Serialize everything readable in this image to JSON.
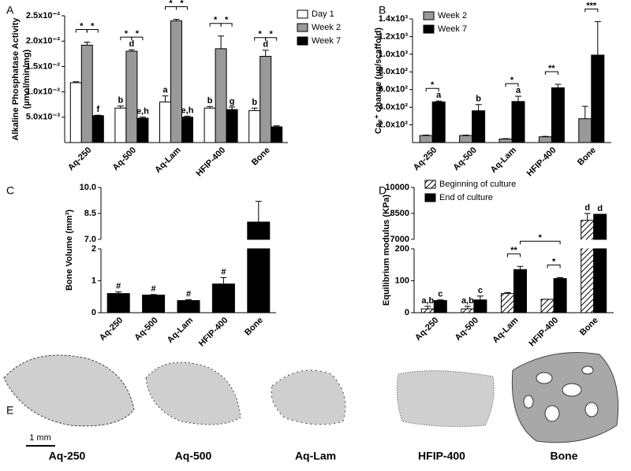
{
  "chart_data": [
    {
      "panel": "A",
      "type": "bar",
      "ylabel": [
        "Alkaline Phosphatase Activity",
        "(µmol/min/mg)"
      ],
      "categories": [
        "Aq-250",
        "Aq-500",
        "Aq-Lam",
        "HFIP-400",
        "Bone"
      ],
      "series": [
        {
          "name": "Day 1",
          "color": "#ffffff",
          "values": [
            0.0118,
            0.0068,
            0.008,
            0.0068,
            0.0063
          ],
          "errors": [
            0.0002,
            0.0004,
            0.0012,
            0.0003,
            0.0005
          ],
          "letters": [
            null,
            "b",
            "a",
            "b",
            "b"
          ]
        },
        {
          "name": "Week 2",
          "color": "#999999",
          "values": [
            0.0192,
            0.018,
            0.024,
            0.0185,
            0.017
          ],
          "errors": [
            0.0006,
            0.0003,
            0.0003,
            0.0025,
            0.0012
          ],
          "letters": [
            null,
            "d",
            null,
            null,
            "d"
          ]
        },
        {
          "name": "Week 7",
          "color": "#000000",
          "values": [
            0.0053,
            0.0048,
            0.005,
            0.0065,
            0.0031
          ],
          "errors": [
            0.0001,
            0.0002,
            0.0002,
            0.0005,
            0.0002
          ],
          "letters": [
            "f",
            "e,h",
            "e,h",
            "g",
            null
          ]
        }
      ],
      "ylim": [
        0,
        0.025
      ],
      "yticks": [
        {
          "value": 0.005,
          "label": "5.0x10⁻³"
        },
        {
          "value": 0.01,
          "label": "1.0x10⁻²"
        },
        {
          "value": 0.015,
          "label": "1.5x10⁻²"
        },
        {
          "value": 0.02,
          "label": "2.0x10⁻²"
        },
        {
          "value": 0.025,
          "label": "2.5x10⁻²"
        }
      ],
      "legend": "right",
      "brackets": [
        {
          "from": [
            0,
            0
          ],
          "to": [
            0,
            1
          ],
          "label": "*"
        },
        {
          "from": [
            0,
            1
          ],
          "to": [
            0,
            2
          ],
          "label": "*"
        },
        {
          "from": [
            1,
            0
          ],
          "to": [
            1,
            1
          ],
          "label": "*"
        },
        {
          "from": [
            1,
            1
          ],
          "to": [
            1,
            2
          ],
          "label": "*"
        },
        {
          "from": [
            2,
            0
          ],
          "to": [
            2,
            1
          ],
          "label": "*"
        },
        {
          "from": [
            2,
            1
          ],
          "to": [
            2,
            2
          ],
          "label": "*"
        },
        {
          "from": [
            3,
            0
          ],
          "to": [
            3,
            1
          ],
          "label": "*"
        },
        {
          "from": [
            3,
            1
          ],
          "to": [
            3,
            2
          ],
          "label": "*"
        },
        {
          "from": [
            4,
            0
          ],
          "to": [
            4,
            1
          ],
          "label": "*"
        },
        {
          "from": [
            4,
            1
          ],
          "to": [
            4,
            2
          ],
          "label": "*"
        }
      ]
    },
    {
      "panel": "B",
      "type": "bar",
      "ylabel": [
        "Ca₂⁺ change (µg/scaffold)"
      ],
      "categories": [
        "Aq-250",
        "Aq-500",
        "Aq-Lam",
        "HFIP-400",
        "Bone"
      ],
      "series": [
        {
          "name": "Week 2",
          "color": "#999999",
          "values": [
            80,
            80,
            40,
            65,
            270
          ],
          "errors": [
            5,
            5,
            5,
            5,
            140
          ],
          "letters": [
            null,
            null,
            null,
            null,
            null
          ]
        },
        {
          "name": "Week 7",
          "color": "#000000",
          "values": [
            460,
            360,
            465,
            620,
            990
          ],
          "errors": [
            10,
            70,
            60,
            40,
            380
          ],
          "letters": [
            "a",
            "b",
            "a",
            null,
            null
          ]
        }
      ],
      "ylim": [
        0,
        1400
      ],
      "yticks": [
        {
          "value": 200,
          "label": "2.0x10²"
        },
        {
          "value": 400,
          "label": "4.0x10²"
        },
        {
          "value": 600,
          "label": "6.0x10²"
        },
        {
          "value": 800,
          "label": "8.0x10²"
        },
        {
          "value": 1000,
          "label": "1.0x10³"
        },
        {
          "value": 1200,
          "label": "1.2x10³"
        },
        {
          "value": 1400,
          "label": "1.4x10³"
        }
      ],
      "legend": "upper left",
      "brackets": [
        {
          "from": [
            0,
            0
          ],
          "to": [
            0,
            1
          ],
          "label": "*"
        },
        {
          "from": [
            2,
            0
          ],
          "to": [
            2,
            1
          ],
          "label": "*"
        },
        {
          "from": [
            3,
            0
          ],
          "to": [
            3,
            1
          ],
          "label": "**"
        },
        {
          "from": [
            4,
            0
          ],
          "to": [
            4,
            1
          ],
          "label": "***"
        }
      ]
    },
    {
      "panel": "C",
      "type": "bar",
      "ylabel": [
        "Bone Volume (mm³)"
      ],
      "categories": [
        "Aq-250",
        "Aq-500",
        "Aq-Lam",
        "HFIP-400",
        "Bone"
      ],
      "series": [
        {
          "color": "#000000",
          "values": [
            0.6,
            0.55,
            0.38,
            0.9,
            8.0
          ],
          "errors": [
            0.05,
            0.02,
            0.03,
            0.2,
            1.2
          ],
          "letters": [
            "#",
            "#",
            "#",
            "#",
            null
          ]
        }
      ],
      "ylim": [
        0,
        10
      ],
      "ybreak": [
        2,
        7
      ],
      "yticks": [
        0,
        1,
        2,
        {
          "value": 7,
          "label": "7.0"
        },
        8.5,
        {
          "value": 10,
          "label": "10.0"
        }
      ],
      "brackets": []
    },
    {
      "panel": "D",
      "type": "bar",
      "ylabel": [
        "Equilibrium modulus (KPa)"
      ],
      "categories": [
        "Aq-250",
        "Aq-500",
        "Aq-Lam",
        "HFIP-400",
        "Bone"
      ],
      "series": [
        {
          "name": "Beginning of culture",
          "color": "#000000",
          "hatch": true,
          "values": [
            12,
            12,
            60,
            42,
            8100
          ],
          "errors": [
            8,
            8,
            3,
            0,
            400
          ],
          "letters": [
            "a,b",
            "a,b",
            null,
            null,
            "d"
          ]
        },
        {
          "name": "End of culture",
          "color": "#000000",
          "values": [
            38,
            40,
            135,
            107,
            8450
          ],
          "errors": [
            2,
            12,
            10,
            3,
            0
          ],
          "letters": [
            "c",
            "c",
            null,
            null,
            "d"
          ]
        }
      ],
      "ylim": [
        0,
        10000
      ],
      "ybreak": [
        200,
        7000
      ],
      "yticks": [
        0,
        100,
        200,
        7000,
        8500,
        10000
      ],
      "legend": "upper left",
      "brackets": [
        {
          "from": [
            2,
            0
          ],
          "to": [
            2,
            1
          ],
          "label": "**"
        },
        {
          "from": [
            3,
            0
          ],
          "to": [
            3,
            1
          ],
          "label": "*"
        },
        {
          "from": [
            2,
            1
          ],
          "to": [
            3,
            1
          ],
          "label": "*"
        }
      ]
    }
  ],
  "panel_e": {
    "panel": "E",
    "labels": [
      "Aq-250",
      "Aq-500",
      "Aq-Lam",
      "HFIP-400",
      "Bone"
    ],
    "scale_bar": "1 mm"
  }
}
